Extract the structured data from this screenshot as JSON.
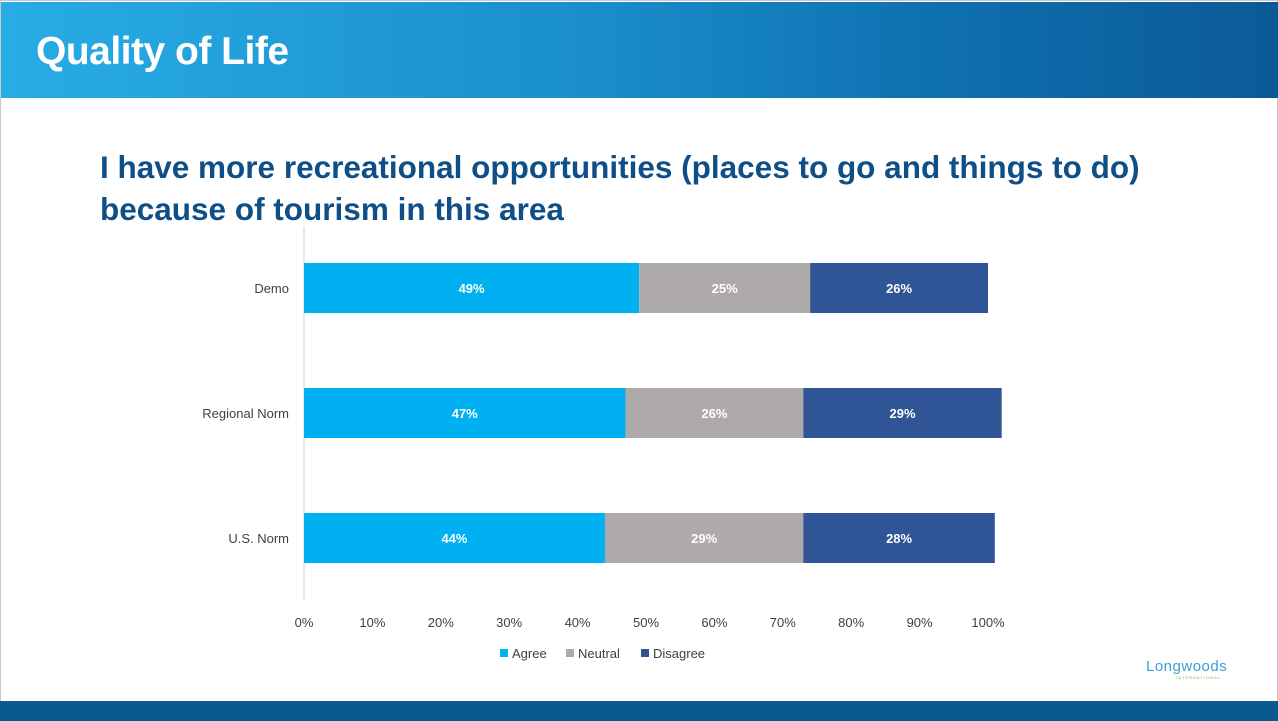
{
  "slide": {
    "title": "Quality of Life",
    "logo_text": "Longwoods",
    "logo_subtext": "INTERNATIONAL"
  },
  "chart_data": {
    "type": "bar",
    "orientation": "horizontal",
    "stacked": true,
    "title": "I have more recreational opportunities (places to go and things to do) because of tourism in this area",
    "categories": [
      "Demo",
      "Regional Norm",
      "U.S. Norm"
    ],
    "series": [
      {
        "name": "Agree",
        "color": "#00b0f0",
        "values": [
          49,
          47,
          44
        ]
      },
      {
        "name": "Neutral",
        "color": "#aeaaaa",
        "values": [
          25,
          26,
          29
        ]
      },
      {
        "name": "Disagree",
        "color": "#2f5597",
        "values": [
          26,
          29,
          28
        ]
      }
    ],
    "data_labels": [
      [
        "49%",
        "47%",
        "44%"
      ],
      [
        "25%",
        "26%",
        "29%"
      ],
      [
        "26%",
        "29%",
        "28%"
      ]
    ],
    "xticks": [
      "0%",
      "10%",
      "20%",
      "30%",
      "40%",
      "50%",
      "60%",
      "70%",
      "80%",
      "90%",
      "100%"
    ],
    "xlim": [
      0,
      100
    ],
    "grid": false,
    "legend_position": "bottom"
  }
}
